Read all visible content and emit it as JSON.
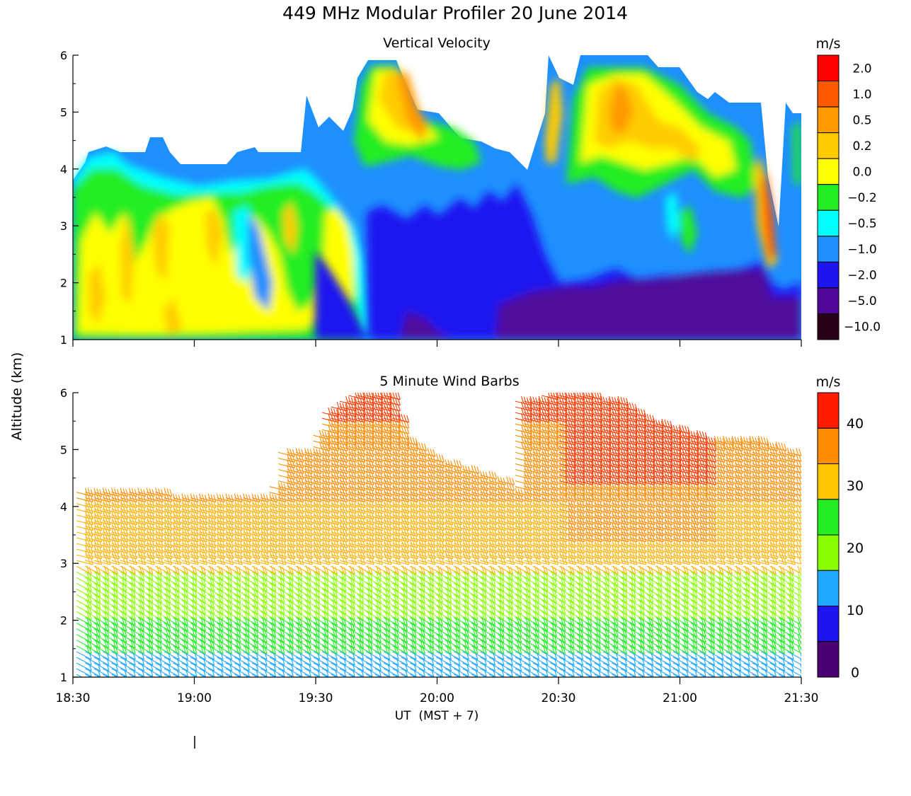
{
  "figure": {
    "title": "449 MHz Modular Profiler 20 June 2014",
    "shared_ylabel": "Altitude (km)",
    "xlabel": "UT  (MST + 7)"
  },
  "chart_data": [
    {
      "type": "heatmap",
      "title": "Vertical Velocity",
      "x_ticks": [
        "18:30",
        "19:00",
        "19:30",
        "20:00",
        "20:30",
        "21:00",
        "21:30"
      ],
      "x_range_hours": [
        18.5,
        21.5
      ],
      "ylim": [
        1,
        6
      ],
      "y_ticks": [
        "1",
        "2",
        "3",
        "4",
        "5",
        "6"
      ],
      "colorbar": {
        "unit": "m/s",
        "labels": [
          "2.0",
          "1.0",
          "0.5",
          "0.2",
          "0.0",
          "−0.2",
          "−0.5",
          "−1.0",
          "−2.0",
          "−5.0",
          "−10.0"
        ],
        "colors": [
          "#ff0000",
          "#ff5a00",
          "#ff9a00",
          "#ffcc00",
          "#ffff00",
          "#22ee22",
          "#00ffff",
          "#1e8fff",
          "#1e14f0",
          "#50089a",
          "#2a0018"
        ]
      },
      "regions": [
        {
          "name": "background",
          "color": "#1e8fff",
          "area": "full-top"
        },
        {
          "name": "left-mixed-layer",
          "colors": [
            "#ffff00",
            "#22ee22",
            "#00ffff",
            "#ffcc00"
          ]
        },
        {
          "name": "downdraft-core",
          "color": "#1e14f0"
        },
        {
          "name": "boundary-layer",
          "color": "#50089a"
        },
        {
          "name": "upper-updrafts",
          "colors": [
            "#ffcc00",
            "#ff9a00",
            "#ffff00",
            "#22ee22"
          ]
        }
      ]
    },
    {
      "type": "wind-barbs",
      "title": "5 Minute Wind Barbs",
      "x_ticks": [
        "18:30",
        "19:00",
        "19:30",
        "20:00",
        "20:30",
        "21:00",
        "21:30"
      ],
      "x_range_hours": [
        18.5,
        21.5
      ],
      "ylim": [
        1,
        6
      ],
      "y_ticks": [
        "1",
        "2",
        "3",
        "4",
        "5",
        "6"
      ],
      "interval_minutes": 5,
      "colorbar": {
        "unit": "m/s",
        "labels": [
          "40",
          "30",
          "20",
          "10",
          "0"
        ],
        "colors": [
          "#ff1a00",
          "#ff8c00",
          "#ffc400",
          "#22ee22",
          "#88ff00",
          "#1ea8ff",
          "#1e14f0",
          "#4a0070"
        ]
      },
      "speed_profile_note": "Winds ~10 m/s near 1 km, 15-25 m/s 1.5-3 km, 25-35 m/s 3-4.5 km, 35-40 m/s 4.5-6 km"
    }
  ]
}
